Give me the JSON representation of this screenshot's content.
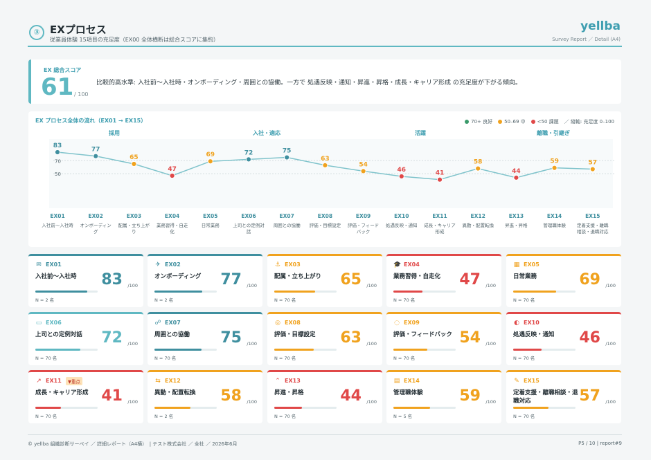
{
  "header": {
    "step": "③",
    "title": "EXプロセス",
    "subtitle": "従業員体験 15項目の充足度（EX00 全体横断は総合スコアに集約）",
    "brand": "yellba",
    "brand_sub": "Survey Report ／ Detail (A4)"
  },
  "summary": {
    "label": "EX 総合スコア",
    "score": "61",
    "max": "/ 100",
    "text": "比較的高水準: 入社前〜入社時・オンボーディング・周囲との協働。一方で 処遇反映・通知・昇進・昇格・成長・キャリア形成 の充足度が下がる傾向。"
  },
  "flow": {
    "title": "EX プロセス全体の流れ（EX01 → EX15）",
    "legend": {
      "good": "70+ 良好",
      "mid": "50–69 中",
      "bad": "<50 課題",
      "axis": "／ 縦軸: 充足度 0–100"
    },
    "phases": [
      "採用",
      "入社・適応",
      "活躍",
      "離職・引継ぎ"
    ]
  },
  "colors": {
    "good": "#3f8f8f",
    "teal": "#5fb8c2",
    "mid": "#f0a21e",
    "bad": "#e04848"
  },
  "chart_data": {
    "type": "line",
    "title": "EX プロセス全体の流れ（EX01 → EX15）",
    "categories": [
      "EX01",
      "EX02",
      "EX03",
      "EX04",
      "EX05",
      "EX06",
      "EX07",
      "EX08",
      "EX09",
      "EX10",
      "EX11",
      "EX12",
      "EX13",
      "EX14",
      "EX15"
    ],
    "category_labels": [
      "入社前〜入社時",
      "オンボーディング",
      "配属・立ち上がり",
      "業務習得・自走化",
      "日常業務",
      "上司との定例対話",
      "周囲との協働",
      "評価・目標設定",
      "評価・フィードバック",
      "処遇反映・通知",
      "成長・キャリア形成",
      "異動・配置転換",
      "昇進・昇格",
      "管理職体験",
      "定着支援・離職相談・退職対応"
    ],
    "values": [
      83,
      77,
      65,
      47,
      69,
      72,
      75,
      63,
      54,
      46,
      41,
      58,
      44,
      59,
      57
    ],
    "ylim": [
      0,
      100
    ],
    "yticks": [
      50,
      70
    ],
    "grid": true
  },
  "cards": [
    {
      "code": "EX01",
      "name": "入社前〜入社時",
      "score": "83",
      "max": "/100",
      "n": "N = 2 名",
      "icon": "✉",
      "flag": ""
    },
    {
      "code": "EX02",
      "name": "オンボーディング",
      "score": "77",
      "max": "/100",
      "n": "N = 2 名",
      "icon": "✈",
      "flag": ""
    },
    {
      "code": "EX03",
      "name": "配属・立ち上がり",
      "score": "65",
      "max": "/100",
      "n": "N = 70 名",
      "icon": "⚓",
      "flag": ""
    },
    {
      "code": "EX04",
      "name": "業務習得・自走化",
      "score": "47",
      "max": "/100",
      "n": "N = 70 名",
      "icon": "🎓",
      "flag": ""
    },
    {
      "code": "EX05",
      "name": "日常業務",
      "score": "69",
      "max": "/100",
      "n": "N = 70 名",
      "icon": "▦",
      "flag": ""
    },
    {
      "code": "EX06",
      "name": "上司との定例対話",
      "score": "72",
      "max": "/100",
      "n": "N = 70 名",
      "icon": "▭",
      "flag": ""
    },
    {
      "code": "EX07",
      "name": "周囲との協働",
      "score": "75",
      "max": "/100",
      "n": "N = 70 名",
      "icon": "☍",
      "flag": ""
    },
    {
      "code": "EX08",
      "name": "評価・目標設定",
      "score": "63",
      "max": "/100",
      "n": "N = 70 名",
      "icon": "◎",
      "flag": ""
    },
    {
      "code": "EX09",
      "name": "評価・フィードバック",
      "score": "54",
      "max": "/100",
      "n": "N = 70 名",
      "icon": "◌",
      "flag": ""
    },
    {
      "code": "EX10",
      "name": "処遇反映・通知",
      "score": "46",
      "max": "/100",
      "n": "N = 70 名",
      "icon": "◐",
      "flag": ""
    },
    {
      "code": "EX11",
      "name": "成長・キャリア形成",
      "score": "41",
      "max": "/100",
      "n": "N = 70 名",
      "icon": "↗",
      "flag": "▼重点"
    },
    {
      "code": "EX12",
      "name": "異動・配置転換",
      "score": "58",
      "max": "/100",
      "n": "N = 2 名",
      "icon": "⇆",
      "flag": ""
    },
    {
      "code": "EX13",
      "name": "昇進・昇格",
      "score": "44",
      "max": "/100",
      "n": "N = 70 名",
      "icon": "⌃",
      "flag": ""
    },
    {
      "code": "EX14",
      "name": "管理職体験",
      "score": "59",
      "max": "/100",
      "n": "N = 5 名",
      "icon": "▤",
      "flag": ""
    },
    {
      "code": "EX15",
      "name": "定着支援・離職相談・退職対応",
      "score": "57",
      "max": "/100",
      "n": "N = 70 名",
      "icon": "✎",
      "flag": ""
    }
  ],
  "footer": {
    "left": "© yellba 組織診断サーベイ ／ 詳細レポート（A4横）　| テスト株式会社 ／ 全社 ／ 2026年6月",
    "right": "P5 / 10 | report#9"
  }
}
